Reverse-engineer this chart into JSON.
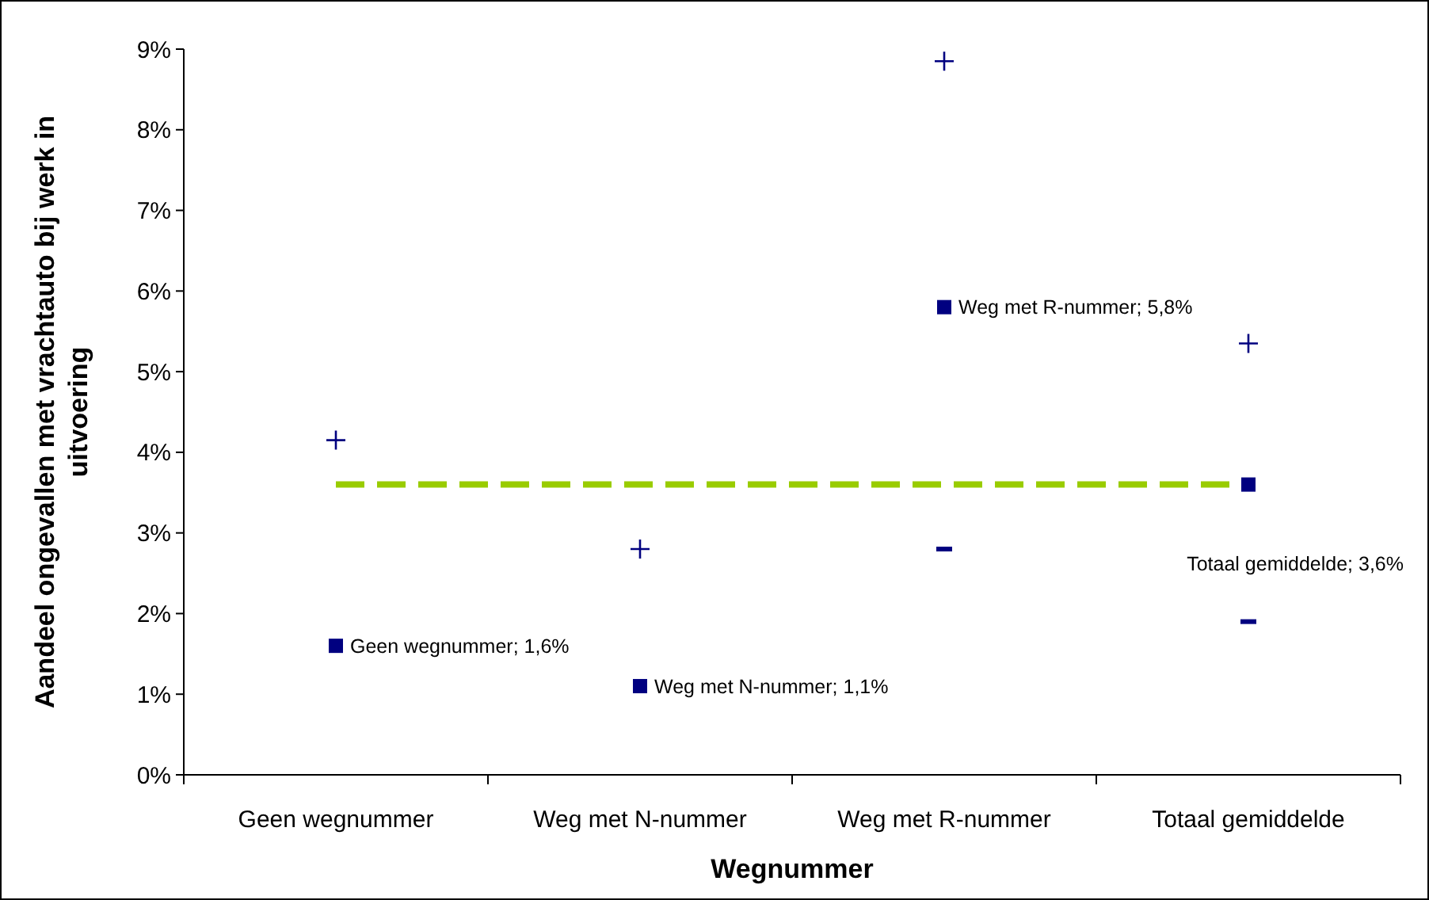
{
  "chart_data": {
    "type": "scatter",
    "xlabel": "Wegnummer",
    "ylabel": "Aandeel ongevallen met vrachtauto bij werk in uitvoering",
    "categories": [
      "Geen wegnummer",
      "Weg met N-nummer",
      "Weg met R-nummer",
      "Totaal gemiddelde"
    ],
    "ylim": [
      0,
      9
    ],
    "yticks": [
      {
        "value": 0,
        "label": "0%"
      },
      {
        "value": 1,
        "label": "1%"
      },
      {
        "value": 2,
        "label": "2%"
      },
      {
        "value": 3,
        "label": "3%"
      },
      {
        "value": 4,
        "label": "4%"
      },
      {
        "value": 5,
        "label": "5%"
      },
      {
        "value": 6,
        "label": "6%"
      },
      {
        "value": 7,
        "label": "7%"
      },
      {
        "value": 8,
        "label": "8%"
      },
      {
        "value": 9,
        "label": "9%"
      }
    ],
    "grid": false,
    "series": [
      {
        "color": "#000080",
        "marker": "square",
        "values": [
          1.6,
          1.1,
          5.8,
          3.6
        ],
        "value_labels": [
          "Geen wegnummer; 1,6%",
          "Weg met N-nummer; 1,1%",
          "Weg met R-nummer; 5,8%",
          "Totaal gemiddelde; 3,6%"
        ]
      },
      {
        "color": "#000080",
        "marker": "cross",
        "values": [
          4.15,
          2.8,
          8.85,
          5.35
        ]
      },
      {
        "color": "#000080",
        "values": [
          null,
          null,
          2.8,
          1.9
        ]
      }
    ],
    "ref_lines": [
      {
        "axis": "y",
        "value": 3.6,
        "color": "#99cc00",
        "line_style": "dashed"
      }
    ]
  }
}
